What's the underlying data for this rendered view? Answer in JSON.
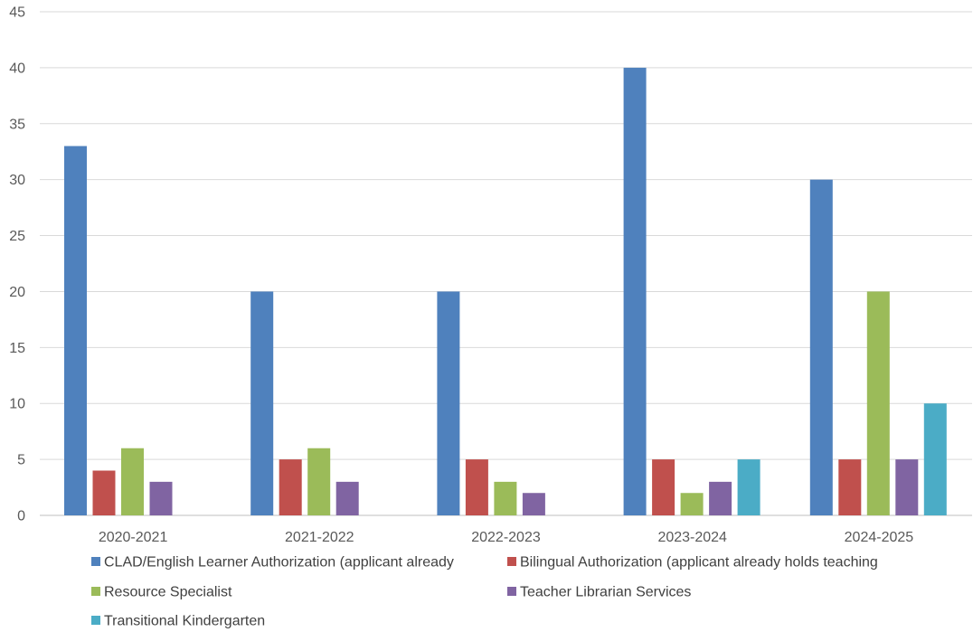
{
  "chart_data": {
    "type": "bar",
    "title": "",
    "xlabel": "",
    "ylabel": "",
    "categories": [
      "2020-2021",
      "2021-2022",
      "2022-2023",
      "2023-2024",
      "2024-2025"
    ],
    "ylim": [
      0,
      45
    ],
    "yticks": [
      0,
      5,
      10,
      15,
      20,
      25,
      30,
      35,
      40,
      45
    ],
    "grid": true,
    "legend_position": "bottom",
    "series": [
      {
        "name": "CLAD/English Learner Authorization (applicant already",
        "color": "#4F81BD",
        "values": [
          33,
          20,
          20,
          40,
          30
        ]
      },
      {
        "name": "Bilingual Authorization (applicant already holds teaching",
        "color": "#C0504D",
        "values": [
          4,
          5,
          5,
          5,
          5
        ]
      },
      {
        "name": "Resource Specialist",
        "color": "#9BBB59",
        "values": [
          6,
          6,
          3,
          2,
          20
        ]
      },
      {
        "name": "Teacher Librarian Services",
        "color": "#8064A2",
        "values": [
          3,
          3,
          2,
          3,
          5
        ]
      },
      {
        "name": "Transitional Kindergarten",
        "color": "#4BACC6",
        "values": [
          0,
          0,
          0,
          5,
          10
        ]
      }
    ]
  }
}
